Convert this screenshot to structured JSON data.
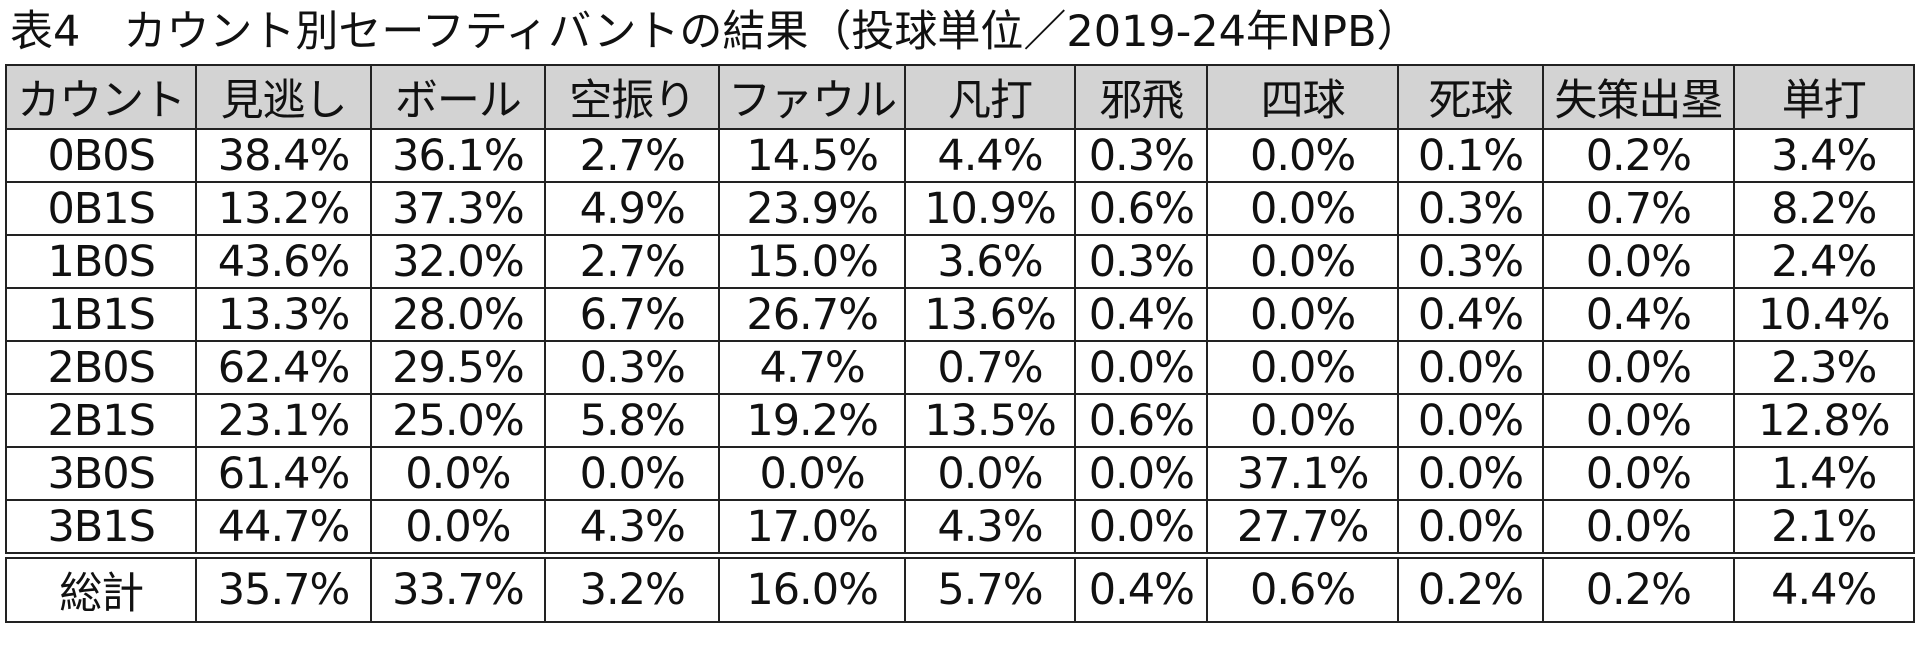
{
  "title": "表4　カウント別セーフティバントの結果（投球単位／2019-24年NPB）",
  "table": {
    "headers": [
      "カウント",
      "見逃し",
      "ボール",
      "空振り",
      "ファウル",
      "凡打",
      "邪飛",
      "四球",
      "死球",
      "失策出塁",
      "単打"
    ],
    "rows": [
      [
        "0B0S",
        "38.4%",
        "36.1%",
        "2.7%",
        "14.5%",
        "4.4%",
        "0.3%",
        "0.0%",
        "0.1%",
        "0.2%",
        "3.4%"
      ],
      [
        "0B1S",
        "13.2%",
        "37.3%",
        "4.9%",
        "23.9%",
        "10.9%",
        "0.6%",
        "0.0%",
        "0.3%",
        "0.7%",
        "8.2%"
      ],
      [
        "1B0S",
        "43.6%",
        "32.0%",
        "2.7%",
        "15.0%",
        "3.6%",
        "0.3%",
        "0.0%",
        "0.3%",
        "0.0%",
        "2.4%"
      ],
      [
        "1B1S",
        "13.3%",
        "28.0%",
        "6.7%",
        "26.7%",
        "13.6%",
        "0.4%",
        "0.0%",
        "0.4%",
        "0.4%",
        "10.4%"
      ],
      [
        "2B0S",
        "62.4%",
        "29.5%",
        "0.3%",
        "4.7%",
        "0.7%",
        "0.0%",
        "0.0%",
        "0.0%",
        "0.0%",
        "2.3%"
      ],
      [
        "2B1S",
        "23.1%",
        "25.0%",
        "5.8%",
        "19.2%",
        "13.5%",
        "0.6%",
        "0.0%",
        "0.0%",
        "0.0%",
        "12.8%"
      ],
      [
        "3B0S",
        "61.4%",
        "0.0%",
        "0.0%",
        "0.0%",
        "0.0%",
        "0.0%",
        "37.1%",
        "0.0%",
        "0.0%",
        "1.4%"
      ],
      [
        "3B1S",
        "44.7%",
        "0.0%",
        "4.3%",
        "17.0%",
        "4.3%",
        "0.0%",
        "27.7%",
        "0.0%",
        "0.0%",
        "2.1%"
      ]
    ],
    "total": [
      "総計",
      "35.7%",
      "33.7%",
      "3.2%",
      "16.0%",
      "5.7%",
      "0.4%",
      "0.6%",
      "0.2%",
      "0.2%",
      "4.4%"
    ]
  }
}
